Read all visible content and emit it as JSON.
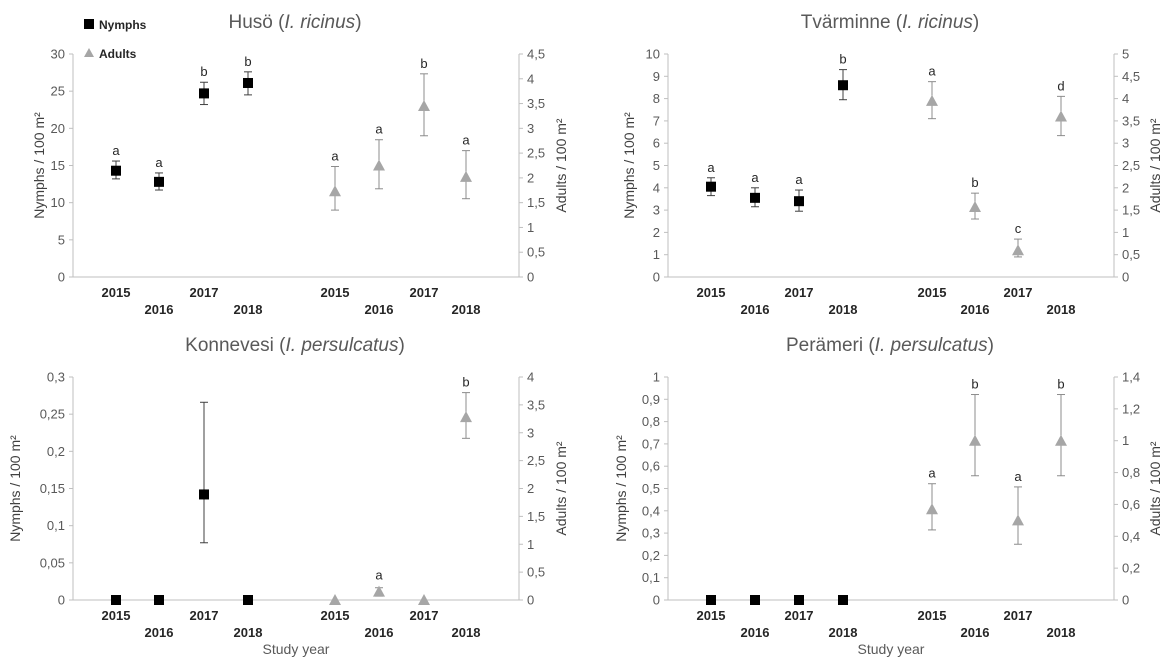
{
  "legend": [
    {
      "label": "Nymphs",
      "marker": "square",
      "color": "#000000"
    },
    {
      "label": "Adults",
      "marker": "triangle",
      "color": "#a6a6a6"
    }
  ],
  "chart_data": [
    {
      "type": "scatter",
      "title": "Husö (",
      "title_species": "I. ricinus",
      "title_close": ")",
      "ylabel_left": "Nymphs / 100 m²",
      "ylabel_right": "Adults / 100 m²",
      "xlabel": "",
      "y_left": {
        "min": 0,
        "max": 30,
        "ticks": [
          "0",
          "5",
          "10",
          "15",
          "20",
          "25",
          "30"
        ]
      },
      "y_right": {
        "min": 0,
        "max": 4.5,
        "ticks": [
          "0",
          "0,5",
          "1",
          "1,5",
          "2",
          "2,5",
          "3",
          "3,5",
          "4",
          "4,5"
        ]
      },
      "categories": [
        "2015",
        "2016",
        "2017",
        "2018",
        "2015",
        "2016",
        "2017",
        "2018"
      ],
      "series": [
        {
          "name": "Nymphs",
          "axis": "left",
          "positions": [
            0,
            1,
            2,
            3
          ],
          "values": [
            14.3,
            12.8,
            24.7,
            26.1
          ],
          "err_low": [
            13.2,
            11.7,
            23.2,
            24.5
          ],
          "err_high": [
            15.6,
            14.0,
            26.2,
            27.6
          ],
          "letters": [
            "a",
            "a",
            "b",
            "b"
          ]
        },
        {
          "name": "Adults",
          "axis": "right",
          "positions": [
            4,
            5,
            6,
            7
          ],
          "values": [
            1.73,
            2.25,
            3.45,
            2.02
          ],
          "err_low": [
            1.35,
            1.78,
            2.85,
            1.58
          ],
          "err_high": [
            2.23,
            2.77,
            4.1,
            2.55
          ],
          "letters": [
            "a",
            "a",
            "b",
            "a"
          ]
        }
      ]
    },
    {
      "type": "scatter",
      "title": "Tvärminne (",
      "title_species": "I. ricinus",
      "title_close": ")",
      "ylabel_left": "Nymphs / 100 m²",
      "ylabel_right": "Adults / 100 m²",
      "xlabel": "",
      "y_left": {
        "min": 0,
        "max": 10,
        "ticks": [
          "0",
          "1",
          "2",
          "3",
          "4",
          "5",
          "6",
          "7",
          "8",
          "9",
          "10"
        ]
      },
      "y_right": {
        "min": 0,
        "max": 5,
        "ticks": [
          "0",
          "0,5",
          "1",
          "1,5",
          "2",
          "2,5",
          "3",
          "3,5",
          "4",
          "4,5",
          "5"
        ]
      },
      "categories": [
        "2015",
        "2016",
        "2017",
        "2018",
        "2015",
        "2016",
        "2017",
        "2018"
      ],
      "series": [
        {
          "name": "Nymphs",
          "axis": "left",
          "positions": [
            0,
            1,
            2,
            3
          ],
          "values": [
            4.05,
            3.55,
            3.4,
            8.6
          ],
          "err_low": [
            3.65,
            3.15,
            2.95,
            7.95
          ],
          "err_high": [
            4.45,
            4.0,
            3.9,
            9.3
          ],
          "letters": [
            "a",
            "a",
            "a",
            "b"
          ]
        },
        {
          "name": "Adults",
          "axis": "right",
          "positions": [
            4,
            5,
            6,
            7
          ],
          "values": [
            3.95,
            1.57,
            0.6,
            3.6
          ],
          "err_low": [
            3.55,
            1.3,
            0.45,
            3.17
          ],
          "err_high": [
            4.38,
            1.88,
            0.85,
            4.05
          ],
          "letters": [
            "a",
            "b",
            "c",
            "d"
          ]
        }
      ]
    },
    {
      "type": "scatter",
      "title": "Konnevesi (",
      "title_species": "I. persulcatus",
      "title_close": ")",
      "ylabel_left": "Nymphs / 100 m²",
      "ylabel_right": "Adults / 100 m²",
      "xlabel": "Study year",
      "y_left": {
        "min": 0,
        "max": 0.3,
        "ticks": [
          "0",
          "0,05",
          "0,1",
          "0,15",
          "0,2",
          "0,25",
          "0,3"
        ]
      },
      "y_right": {
        "min": 0,
        "max": 4,
        "ticks": [
          "0",
          "0,5",
          "1",
          "1,5",
          "2",
          "2,5",
          "3",
          "3,5",
          "4"
        ]
      },
      "categories": [
        "2015",
        "2016",
        "2017",
        "2018",
        "2015",
        "2016",
        "2017",
        "2018"
      ],
      "series": [
        {
          "name": "Nymphs",
          "axis": "left",
          "positions": [
            0,
            1,
            2,
            3
          ],
          "values": [
            0,
            0,
            0.142,
            0
          ],
          "err_low": [
            null,
            null,
            0.077,
            null
          ],
          "err_high": [
            null,
            null,
            0.266,
            null
          ],
          "letters": [
            "",
            "",
            "",
            ""
          ]
        },
        {
          "name": "Adults",
          "axis": "right",
          "positions": [
            4,
            5,
            6,
            7
          ],
          "values": [
            0,
            0.15,
            0,
            3.28
          ],
          "err_low": [
            null,
            0.07,
            null,
            2.9
          ],
          "err_high": [
            null,
            0.22,
            null,
            3.72
          ],
          "letters": [
            "",
            "a",
            "",
            "b"
          ]
        }
      ]
    },
    {
      "type": "scatter",
      "title": "Perämeri (",
      "title_species": "I. persulcatus",
      "title_close": ")",
      "ylabel_left": "Nymphs / 100 m²",
      "ylabel_right": "Adults / 100 m²",
      "xlabel": "Study year",
      "y_left": {
        "min": 0,
        "max": 1,
        "ticks": [
          "0",
          "0,1",
          "0,2",
          "0,3",
          "0,4",
          "0,5",
          "0,6",
          "0,7",
          "0,8",
          "0,9",
          "1"
        ]
      },
      "y_right": {
        "min": 0,
        "max": 1.4,
        "ticks": [
          "0",
          "0,2",
          "0,4",
          "0,6",
          "0,8",
          "1",
          "1,2",
          "1,4"
        ]
      },
      "categories": [
        "2015",
        "2016",
        "2017",
        "2018",
        "2015",
        "2016",
        "2017",
        "2018"
      ],
      "series": [
        {
          "name": "Nymphs",
          "axis": "left",
          "positions": [
            0,
            1,
            2,
            3
          ],
          "values": [
            0,
            0,
            0,
            0
          ],
          "err_low": [
            null,
            null,
            null,
            null
          ],
          "err_high": [
            null,
            null,
            null,
            null
          ],
          "letters": [
            "",
            "",
            "",
            ""
          ]
        },
        {
          "name": "Adults",
          "axis": "right",
          "positions": [
            4,
            5,
            6,
            7
          ],
          "values": [
            0.57,
            1.0,
            0.5,
            1.0
          ],
          "err_low": [
            0.44,
            0.78,
            0.35,
            0.78
          ],
          "err_high": [
            0.73,
            1.29,
            0.71,
            1.29
          ],
          "letters": [
            "a",
            "b",
            "a",
            "b"
          ]
        }
      ]
    }
  ]
}
